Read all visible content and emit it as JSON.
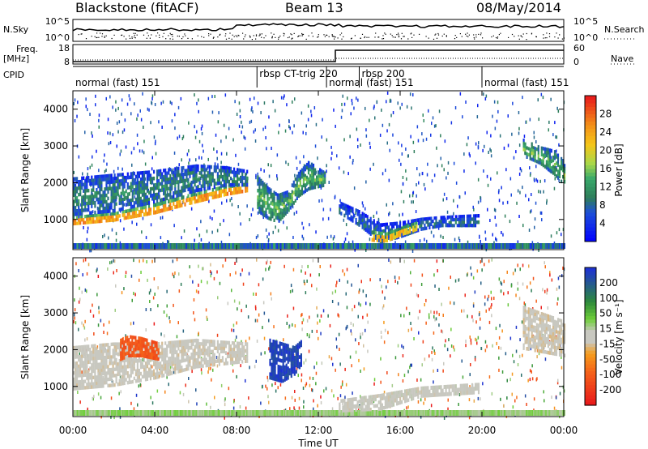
{
  "header": {
    "station": "Blackstone (fitACF)",
    "beam": "Beam 13",
    "date": "08/May/2014"
  },
  "side_labels": {
    "nsky": "N.Sky",
    "freq": "Freq.",
    "mhz": "[MHz]",
    "cpid": "CPID",
    "nsearch": "N.Search",
    "nave": "Nave"
  },
  "noise_panel": {
    "left_ticks": [
      "10^5",
      "10^0"
    ],
    "right_ticks": [
      "10^5",
      "10^0"
    ]
  },
  "freq_panel": {
    "left_ticks": [
      "18",
      "8"
    ],
    "right_ticks": [
      "60",
      "0"
    ]
  },
  "cpid_segments": [
    {
      "label": "normal (fast) 151",
      "start": 0.0,
      "end": 9.0
    },
    {
      "label": "rbsp CT-trig 220",
      "start": 9.0,
      "end": 12.4
    },
    {
      "label": "normal (fast) 151",
      "start": 12.4,
      "end": 14.0
    },
    {
      "label": "rbsp 200",
      "start": 14.0,
      "end": 20.0
    },
    {
      "label": "normal (fast) 151",
      "start": 20.0,
      "end": 24.0
    }
  ],
  "power_colorbar": {
    "label": "Power [dB]",
    "ticks": [
      "28",
      "24",
      "20",
      "16",
      "12",
      "8",
      "4"
    ]
  },
  "velocity_colorbar": {
    "label": "Velocity [m s⁻¹]",
    "ticks": [
      "200",
      "100",
      "50",
      "15",
      "-15",
      "-50",
      "-100",
      "-200"
    ]
  },
  "chart_data": [
    {
      "type": "heatmap",
      "title": "Power",
      "xlabel": "Time UT",
      "ylabel": "Slant Range [km]",
      "xlim": [
        0,
        24
      ],
      "ylim": [
        180,
        4500
      ],
      "x_ticks": [
        "00:00",
        "04:00",
        "08:00",
        "12:00",
        "16:00",
        "20:00",
        "00:00"
      ],
      "y_ticks": [
        "1000",
        "2000",
        "3000",
        "4000"
      ],
      "colorbar": {
        "label": "Power [dB]",
        "range": [
          0,
          30
        ]
      },
      "bands": [
        {
          "t": [
            0,
            2,
            4,
            6,
            7.5,
            8.5
          ],
          "lo": [
            850,
            950,
            1150,
            1450,
            1650,
            1750
          ],
          "hi": [
            1100,
            1200,
            1450,
            1750,
            1950,
            2000
          ],
          "power": 28
        },
        {
          "t": [
            0,
            2,
            4,
            6,
            7.5,
            8.5
          ],
          "lo": [
            1100,
            1200,
            1450,
            1750,
            1900,
            1900
          ],
          "hi": [
            2150,
            2250,
            2350,
            2500,
            2450,
            2350
          ],
          "power": 10
        },
        {
          "t": [
            9,
            9.5,
            10,
            10.5,
            11,
            11.5,
            12.3
          ],
          "lo": [
            1200,
            1000,
            900,
            1200,
            1600,
            1800,
            1900
          ],
          "hi": [
            2200,
            1900,
            1700,
            1800,
            2300,
            2600,
            2300
          ],
          "power": 14
        },
        {
          "t": [
            13,
            14,
            15,
            16,
            17,
            18,
            19.8
          ],
          "lo": [
            1150,
            800,
            350,
            500,
            700,
            800,
            800
          ],
          "hi": [
            1500,
            1250,
            900,
            950,
            1050,
            1100,
            1150
          ],
          "power": 8
        },
        {
          "t": [
            14.6,
            15.3,
            16,
            16.8
          ],
          "lo": [
            400,
            380,
            550,
            700
          ],
          "hi": [
            700,
            650,
            800,
            950
          ],
          "power": 26
        },
        {
          "t": [
            22,
            22.8,
            23.5,
            24
          ],
          "lo": [
            2700,
            2500,
            2200,
            1900
          ],
          "hi": [
            3200,
            3000,
            2900,
            2600
          ],
          "power": 14
        }
      ]
    },
    {
      "type": "heatmap",
      "title": "Velocity",
      "xlabel": "Time UT",
      "ylabel": "Slant Range [km]",
      "xlim": [
        0,
        24
      ],
      "ylim": [
        180,
        4500
      ],
      "x_ticks": [
        "00:00",
        "04:00",
        "08:00",
        "12:00",
        "16:00",
        "20:00",
        "00:00"
      ],
      "y_ticks": [
        "1000",
        "2000",
        "3000",
        "4000"
      ],
      "colorbar": {
        "label": "Velocity [m s⁻¹]",
        "range": [
          -200,
          200
        ]
      },
      "bands": [
        {
          "t": [
            0,
            2,
            4,
            6,
            8.5
          ],
          "lo": [
            900,
            1000,
            1200,
            1500,
            1650
          ],
          "hi": [
            2100,
            2200,
            2200,
            2300,
            2200
          ],
          "velocity": -5
        },
        {
          "t": [
            2.3,
            2.7,
            3.3,
            4.2
          ],
          "lo": [
            1700,
            1800,
            1800,
            1700
          ],
          "hi": [
            2300,
            2400,
            2350,
            2200
          ],
          "velocity": -120
        },
        {
          "t": [
            9.6,
            10.2,
            10.8,
            11.2
          ],
          "lo": [
            1200,
            1100,
            1300,
            1600
          ],
          "hi": [
            2300,
            2200,
            2100,
            2300
          ],
          "velocity": 180
        },
        {
          "t": [
            13,
            15,
            17,
            19.8
          ],
          "lo": [
            300,
            350,
            700,
            800
          ],
          "hi": [
            650,
            800,
            1000,
            1100
          ],
          "velocity": 0
        },
        {
          "t": [
            22,
            23,
            24
          ],
          "lo": [
            2000,
            1900,
            1800
          ],
          "hi": [
            3200,
            3000,
            2800
          ],
          "velocity": -10
        }
      ]
    }
  ]
}
